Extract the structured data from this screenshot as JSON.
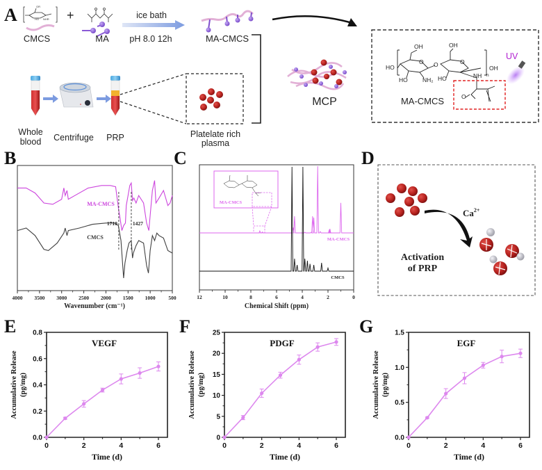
{
  "panels": {
    "A": {
      "letter": "A",
      "reactant1": "CMCS",
      "plus": "+",
      "reactant2": "MA",
      "condition_top": "ice bath",
      "condition_bottom": "pH 8.0 12h",
      "product": "MA-CMCS",
      "step_whole_blood_line1": "Whole",
      "step_whole_blood_line2": "blood",
      "step_centrifuge": "Centrifuge",
      "step_prp": "PRP",
      "prp_zoom_line1": "Platelate rich",
      "prp_zoom_line2": "plasma",
      "composite": "MCP",
      "structure_label": "MA-CMCS",
      "uv_label": "UV",
      "structure_atoms": {
        "oh_top1": "OH",
        "oh_top2": "OH",
        "ho_left": "HO",
        "ho_bottom1": "HO",
        "nh2": "NH₂",
        "ho_bottom2": "HO",
        "nh": "NH",
        "oh_end": "OH",
        "o_link": "O",
        "o_ring": "O",
        "o_carbonyl": "O",
        "n_sub": "n"
      },
      "colors": {
        "uv": "#b020d0",
        "highlight_box": "#e02020",
        "chain": "#e4b4d8",
        "bead": "#8c5ad8",
        "platelet": "#b41e24"
      }
    },
    "D": {
      "letter": "D",
      "ion": "Ca",
      "ion_charge": "2+",
      "caption_line1": "Activation",
      "caption_line2": "of PRP"
    }
  },
  "chart_data": [
    {
      "panel": "B",
      "type": "line",
      "title": "",
      "xlabel": "Wavenumber (cm⁻¹)",
      "ylabel": "",
      "xlim": [
        4000,
        500
      ],
      "x_reversed": true,
      "xticks": [
        "4000",
        "3500",
        "3000",
        "2500",
        "2000",
        "1500",
        "1000",
        "500"
      ],
      "annotations": [
        {
          "text": "1710",
          "x": 1710,
          "style": "dashed-vertical-line"
        },
        {
          "text": "1427",
          "x": 1427,
          "style": "dashed-vertical-line"
        }
      ],
      "series": [
        {
          "name": "MA-CMCS",
          "color": "#cc44dd",
          "points": [
            [
              4000,
              0.18
            ],
            [
              3800,
              0.18
            ],
            [
              3600,
              0.22
            ],
            [
              3400,
              0.3
            ],
            [
              3200,
              0.31
            ],
            [
              3000,
              0.27
            ],
            [
              2950,
              0.18
            ],
            [
              2920,
              0.24
            ],
            [
              2880,
              0.2
            ],
            [
              2850,
              0.27
            ],
            [
              2700,
              0.24
            ],
            [
              2400,
              0.18
            ],
            [
              2100,
              0.16
            ],
            [
              1900,
              0.16
            ],
            [
              1780,
              0.17
            ],
            [
              1740,
              0.28
            ],
            [
              1710,
              0.36
            ],
            [
              1690,
              0.4
            ],
            [
              1640,
              0.52
            ],
            [
              1600,
              0.48
            ],
            [
              1560,
              0.46
            ],
            [
              1540,
              0.32
            ],
            [
              1500,
              0.24
            ],
            [
              1460,
              0.16
            ],
            [
              1427,
              0.14
            ],
            [
              1400,
              0.28
            ],
            [
              1370,
              0.26
            ],
            [
              1320,
              0.3
            ],
            [
              1260,
              0.24
            ],
            [
              1150,
              0.3
            ],
            [
              1080,
              0.46
            ],
            [
              1030,
              0.52
            ],
            [
              1000,
              0.4
            ],
            [
              950,
              0.2
            ],
            [
              900,
              0.12
            ],
            [
              870,
              0.3
            ],
            [
              800,
              0.26
            ],
            [
              700,
              0.2
            ],
            [
              600,
              0.32
            ],
            [
              550,
              0.3
            ],
            [
              500,
              0.24
            ]
          ]
        },
        {
          "name": "CMCS",
          "color": "#404040",
          "points": [
            [
              4000,
              0.52
            ],
            [
              3800,
              0.5
            ],
            [
              3600,
              0.56
            ],
            [
              3400,
              0.67
            ],
            [
              3300,
              0.68
            ],
            [
              3100,
              0.62
            ],
            [
              2950,
              0.54
            ],
            [
              2920,
              0.5
            ],
            [
              2880,
              0.56
            ],
            [
              2850,
              0.52
            ],
            [
              2600,
              0.5
            ],
            [
              2300,
              0.47
            ],
            [
              2000,
              0.46
            ],
            [
              1800,
              0.46
            ],
            [
              1720,
              0.48
            ],
            [
              1660,
              0.6
            ],
            [
              1600,
              0.9
            ],
            [
              1570,
              0.78
            ],
            [
              1520,
              0.68
            ],
            [
              1480,
              0.62
            ],
            [
              1427,
              0.6
            ],
            [
              1400,
              0.74
            ],
            [
              1380,
              0.7
            ],
            [
              1320,
              0.64
            ],
            [
              1260,
              0.6
            ],
            [
              1150,
              0.62
            ],
            [
              1080,
              0.8
            ],
            [
              1040,
              0.86
            ],
            [
              1000,
              0.68
            ],
            [
              950,
              0.56
            ],
            [
              900,
              0.6
            ],
            [
              850,
              0.54
            ],
            [
              800,
              0.56
            ],
            [
              700,
              0.58
            ],
            [
              600,
              0.68
            ],
            [
              500,
              0.7
            ]
          ]
        }
      ]
    },
    {
      "panel": "C",
      "type": "line",
      "title": "",
      "xlabel": "Chemical Shift (ppm)",
      "ylabel": "",
      "xlim": [
        12,
        0
      ],
      "x_reversed": true,
      "xticks": [
        "12",
        "10",
        "8",
        "6",
        "4",
        "2",
        "0"
      ],
      "inset_label": "MA-CMCS",
      "series": [
        {
          "name": "MA-CMCS",
          "color": "#dd66ee",
          "peaks": [
            [
              7.3,
              0.03
            ],
            [
              7.1,
              0.015
            ],
            [
              4.7,
              0.08
            ],
            [
              4.6,
              0.25
            ],
            [
              3.8,
              0.01
            ],
            [
              3.3,
              0.01
            ],
            [
              3.2,
              0.25
            ],
            [
              3.1,
              0.23
            ],
            [
              2.8,
              1.0
            ],
            [
              2.6,
              0.02
            ],
            [
              1.9,
              0.05
            ],
            [
              1.85,
              0.06
            ],
            [
              1.0,
              0.45
            ]
          ]
        },
        {
          "name": "CMCS",
          "color": "#111111",
          "peaks": [
            [
              4.8,
              1.0
            ],
            [
              4.6,
              0.12
            ],
            [
              4.4,
              0.06
            ],
            [
              3.95,
              1.0
            ],
            [
              3.8,
              0.12
            ],
            [
              3.6,
              0.1
            ],
            [
              3.4,
              0.07
            ],
            [
              3.1,
              0.06
            ],
            [
              2.5,
              0.08
            ],
            [
              2.0,
              0.03
            ]
          ]
        }
      ]
    },
    {
      "panel": "E",
      "type": "line",
      "title": "VEGF",
      "xlabel": "Time (d)",
      "ylabel": "Accumulative Release (pg/mg)",
      "xlim": [
        0,
        6.5
      ],
      "ylim": [
        0,
        0.8
      ],
      "xticks": [
        0,
        2,
        4,
        6
      ],
      "yticks": [
        "0.0",
        "0.2",
        "0.4",
        "0.6",
        "0.8"
      ],
      "color": "#dd88ee",
      "x": [
        0,
        1,
        2,
        3,
        4,
        5,
        6
      ],
      "values": [
        0.0,
        0.145,
        0.255,
        0.36,
        0.445,
        0.49,
        0.54
      ],
      "errors": [
        0.0,
        0.008,
        0.025,
        0.015,
        0.038,
        0.04,
        0.035
      ]
    },
    {
      "panel": "F",
      "type": "line",
      "title": "PDGF",
      "xlabel": "Time (d)",
      "ylabel": "Accumulative Release (pg/mg)",
      "xlim": [
        0,
        6.5
      ],
      "ylim": [
        0,
        25
      ],
      "xticks": [
        0,
        2,
        4,
        6
      ],
      "yticks": [
        "0",
        "5",
        "10",
        "15",
        "20",
        "25"
      ],
      "color": "#dd88ee",
      "x": [
        0,
        1,
        2,
        3,
        4,
        5,
        6
      ],
      "values": [
        0.0,
        4.7,
        10.5,
        14.8,
        18.5,
        21.5,
        22.7
      ],
      "errors": [
        0.0,
        0.5,
        1.0,
        0.7,
        1.1,
        1.0,
        0.8
      ]
    },
    {
      "panel": "G",
      "type": "line",
      "title": "EGF",
      "xlabel": "Time (d)",
      "ylabel": "Accumulative Release (pg/mg)",
      "xlim": [
        0,
        6.5
      ],
      "ylim": [
        0,
        1.5
      ],
      "xticks": [
        0,
        2,
        4,
        6
      ],
      "yticks": [
        "0.0",
        "0.5",
        "1.0",
        "1.5"
      ],
      "color": "#dd88ee",
      "x": [
        0,
        1,
        2,
        3,
        4,
        5,
        6
      ],
      "values": [
        0.0,
        0.28,
        0.625,
        0.845,
        1.03,
        1.155,
        1.2
      ],
      "errors": [
        0.0,
        0.01,
        0.07,
        0.08,
        0.04,
        0.09,
        0.06
      ]
    }
  ]
}
